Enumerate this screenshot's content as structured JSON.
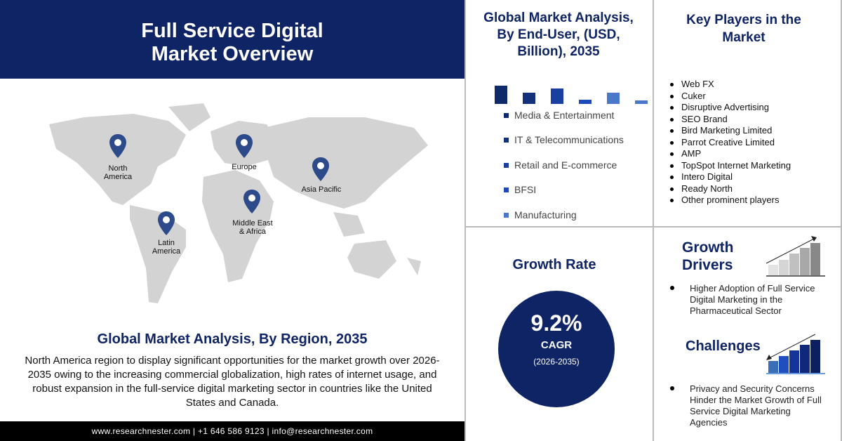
{
  "header": {
    "title_line1": "Full Service Digital",
    "title_line2": "Market Overview"
  },
  "map": {
    "regions": [
      {
        "label_lines": [
          "North",
          "America"
        ]
      },
      {
        "label_lines": [
          "Europe"
        ]
      },
      {
        "label_lines": [
          "Asia Pacific"
        ]
      },
      {
        "label_lines": [
          "Middle East",
          "& Africa"
        ]
      },
      {
        "label_lines": [
          "Latin",
          "America"
        ]
      }
    ],
    "pin_color": "#2d4a8a"
  },
  "region_section": {
    "title": "Global Market Analysis, By Region, 2035",
    "text": "North America region to display significant opportunities for the market growth over 2026-2035 owing to the increasing commercial globalization, high rates of internet usage, and robust expansion in the full-service digital marketing sector in countries like the United States and Canada."
  },
  "footer": {
    "text": "www.researchnester.com | +1 646 586 9123 | info@researchnester.com"
  },
  "end_user": {
    "title": "Global Market Analysis, By End-User, (USD, Billion), 2035",
    "bar_levels": [
      26,
      16,
      22,
      6,
      16,
      5
    ],
    "bar_colors": [
      "#0f2a6b",
      "#13307a",
      "#1a3fa0",
      "#1e49b8",
      "#4a78c8",
      "#4a78c8"
    ],
    "legend": [
      {
        "label": "Media & Entertainment",
        "color": "#0f2a6b"
      },
      {
        "label": "IT & Telecommunications",
        "color": "#13307a"
      },
      {
        "label": "Retail and E-commerce",
        "color": "#1a3fa0"
      },
      {
        "label": "BFSI",
        "color": "#1e49b8"
      },
      {
        "label": "Manufacturing",
        "color": "#4a78c8"
      }
    ]
  },
  "key_players": {
    "title": "Key Players in the Market",
    "items": [
      "Web FX",
      "Cuker",
      "Disruptive Advertising",
      "SEO Brand",
      "Bird Marketing Limited",
      "Parrot Creative Limited",
      "AMP",
      "TopSpot Internet Marketing",
      "Intero Digital",
      "Ready North",
      "Other prominent players"
    ]
  },
  "growth_rate": {
    "title": "Growth Rate",
    "value": "9.2%",
    "label": "CAGR",
    "period": "(2026-2035)"
  },
  "growth_drivers": {
    "title_line1": "Growth",
    "title_line2": "Drivers",
    "items": [
      "Higher Adoption of Full Service Digital Marketing  in the Pharmaceutical Sector"
    ]
  },
  "challenges": {
    "title": "Challenges",
    "items": [
      "Privacy and Security Concerns Hinder the Market Growth of Full Service Digital Marketing Agencies"
    ]
  }
}
